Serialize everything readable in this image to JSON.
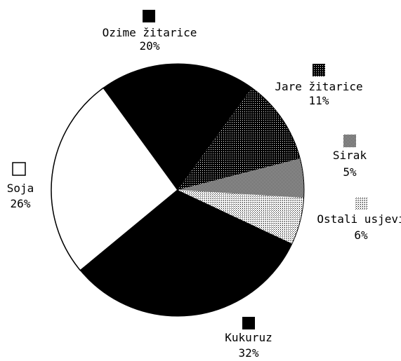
{
  "chart_data": {
    "type": "pie",
    "title": "",
    "slices": [
      {
        "label": "Ozime žitarice",
        "pct_text": "20%",
        "value": 20,
        "fill": "black"
      },
      {
        "label": "Jare žitarice",
        "pct_text": "11%",
        "value": 11,
        "fill": "dense-dots"
      },
      {
        "label": "Sirak",
        "pct_text": "5%",
        "value": 5,
        "fill": "medium-dots"
      },
      {
        "label": "Ostali usjevi",
        "pct_text": "6%",
        "value": 6,
        "fill": "light-dots"
      },
      {
        "label": "Kukuruz",
        "pct_text": "32%",
        "value": 32,
        "fill": "black"
      },
      {
        "label": "Soja",
        "pct_text": "26%",
        "value": 26,
        "fill": "white"
      }
    ]
  }
}
